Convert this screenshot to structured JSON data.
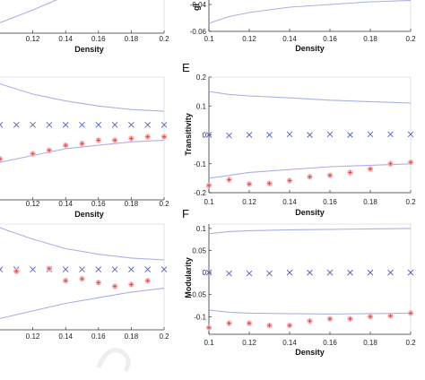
{
  "chart_data": [
    {
      "id": "top-left",
      "type": "line",
      "xlabel": "Density",
      "ylabel": "",
      "xticks": [
        "0.12",
        "0.14",
        "0.16",
        "0.18",
        "0.2"
      ],
      "yticks": [],
      "panel_label": "",
      "xlim": [
        0.1,
        0.2
      ],
      "ylim": [
        0,
        1
      ],
      "series": [
        {
          "kind": "band",
          "x": [
            0.1,
            0.12,
            0.135,
            0.14
          ],
          "y": [
            0.25,
            0.55,
            0.8,
            1.0
          ]
        }
      ],
      "crosses": [],
      "stars": []
    },
    {
      "id": "top-right",
      "type": "line",
      "xlabel": "Density",
      "ylabel": "gl",
      "xticks": [
        "0.1",
        "0.12",
        "0.14",
        "0.16",
        "0.18",
        "0.2"
      ],
      "yticks": [
        "-0.04",
        "-0.06"
      ],
      "panel_label": "",
      "xlim": [
        0.1,
        0.2
      ],
      "ylim": [
        -0.06,
        -0.03
      ],
      "series": [
        {
          "kind": "band",
          "x": [
            0.1,
            0.11,
            0.12,
            0.14,
            0.16,
            0.18,
            0.2
          ],
          "y": [
            -0.054,
            -0.049,
            -0.046,
            -0.042,
            -0.04,
            -0.038,
            -0.037
          ]
        }
      ],
      "crosses": [],
      "stars": []
    },
    {
      "id": "mid-left",
      "type": "scatter",
      "xlabel": "Density",
      "ylabel": "",
      "xticks": [
        "0.12",
        "0.14",
        "0.16",
        "0.18",
        "0.2"
      ],
      "yticks": [],
      "panel_label": "",
      "xlim": [
        0.1,
        0.2
      ],
      "ylim": [
        -0.22,
        0.14
      ],
      "series": [
        {
          "kind": "band",
          "x": [
            0.1,
            0.12,
            0.14,
            0.16,
            0.18,
            0.2
          ],
          "y": [
            0.12,
            0.09,
            0.07,
            0.055,
            0.045,
            0.04
          ]
        },
        {
          "kind": "band",
          "x": [
            0.1,
            0.12,
            0.14,
            0.16,
            0.18,
            0.2
          ],
          "y": [
            -0.11,
            -0.09,
            -0.07,
            -0.06,
            -0.05,
            -0.045
          ]
        }
      ],
      "crosses": {
        "x": [
          0.1,
          0.11,
          0.12,
          0.13,
          0.14,
          0.15,
          0.16,
          0.17,
          0.18,
          0.19,
          0.2
        ],
        "y": [
          0,
          0,
          0,
          0,
          0,
          0,
          0,
          0,
          0,
          0,
          0
        ]
      },
      "stars": {
        "x": [
          0.1,
          0.12,
          0.13,
          0.14,
          0.15,
          0.16,
          0.17,
          0.18,
          0.19,
          0.2
        ],
        "y": [
          -0.1,
          -0.085,
          -0.075,
          -0.06,
          -0.055,
          -0.045,
          -0.045,
          -0.04,
          -0.035,
          -0.035
        ]
      }
    },
    {
      "id": "panel-E",
      "type": "scatter",
      "xlabel": "Density",
      "ylabel": "Transitivity",
      "xticks": [
        "0.1",
        "0.12",
        "0.14",
        "0.16",
        "0.18",
        "0.2"
      ],
      "yticks": [
        "0.2",
        "0.1",
        "0",
        "-0.1",
        "-0.2"
      ],
      "panel_label": "E",
      "xlim": [
        0.1,
        0.2
      ],
      "ylim": [
        -0.2,
        0.2
      ],
      "series": [
        {
          "kind": "band",
          "x": [
            0.1,
            0.11,
            0.12,
            0.14,
            0.16,
            0.18,
            0.2
          ],
          "y": [
            0.15,
            0.14,
            0.135,
            0.128,
            0.12,
            0.115,
            0.11
          ]
        },
        {
          "kind": "band",
          "x": [
            0.1,
            0.11,
            0.12,
            0.14,
            0.16,
            0.18,
            0.2
          ],
          "y": [
            -0.15,
            -0.14,
            -0.13,
            -0.12,
            -0.11,
            -0.105,
            -0.1
          ]
        }
      ],
      "crosses": {
        "x": [
          0.1,
          0.11,
          0.12,
          0.13,
          0.14,
          0.15,
          0.16,
          0.17,
          0.18,
          0.19,
          0.2
        ],
        "y": [
          0,
          -0.002,
          0,
          0,
          0.002,
          0,
          0.002,
          0,
          0.002,
          0.002,
          0.002
        ]
      },
      "stars": {
        "x": [
          0.1,
          0.11,
          0.12,
          0.13,
          0.14,
          0.15,
          0.16,
          0.17,
          0.18,
          0.19,
          0.2
        ],
        "y": [
          -0.175,
          -0.155,
          -0.17,
          -0.168,
          -0.158,
          -0.145,
          -0.14,
          -0.13,
          -0.118,
          -0.1,
          -0.095
        ]
      }
    },
    {
      "id": "bottom-left",
      "type": "scatter",
      "xlabel": "",
      "ylabel": "",
      "xticks": [
        "0.12",
        "0.14",
        "0.16",
        "0.18",
        "0.2"
      ],
      "yticks": [],
      "panel_label": "",
      "xlim": [
        0.1,
        0.2
      ],
      "ylim": [
        -0.16,
        0.12
      ],
      "series": [
        {
          "kind": "band",
          "x": [
            0.1,
            0.12,
            0.14,
            0.16,
            0.18,
            0.2
          ],
          "y": [
            0.11,
            0.08,
            0.055,
            0.04,
            0.03,
            0.025
          ]
        },
        {
          "kind": "band",
          "x": [
            0.1,
            0.12,
            0.14,
            0.16,
            0.18,
            0.2
          ],
          "y": [
            -0.13,
            -0.11,
            -0.09,
            -0.075,
            -0.06,
            -0.05
          ]
        }
      ],
      "crosses": {
        "x": [
          0.1,
          0.11,
          0.12,
          0.13,
          0.14,
          0.15,
          0.16,
          0.17,
          0.18,
          0.19,
          0.2
        ],
        "y": [
          0,
          0,
          0,
          0,
          0,
          0,
          0,
          0,
          0,
          0,
          0
        ]
      },
      "stars": {
        "x": [
          0.11,
          0.13,
          0.14,
          0.15,
          0.16,
          0.17,
          0.18,
          0.19
        ],
        "y": [
          -0.005,
          0.002,
          -0.03,
          -0.025,
          -0.035,
          -0.045,
          -0.04,
          -0.03
        ]
      }
    },
    {
      "id": "panel-F",
      "type": "scatter",
      "xlabel": "Density",
      "ylabel": "Modularity",
      "xticks": [
        "0.1",
        "0.12",
        "0.14",
        "0.16",
        "0.18",
        "0.2"
      ],
      "yticks": [
        "0.1",
        "0.05",
        "0",
        "-0.05",
        "-0.1"
      ],
      "panel_label": "F",
      "xlim": [
        0.1,
        0.2
      ],
      "ylim": [
        -0.14,
        0.11
      ],
      "series": [
        {
          "kind": "band",
          "x": [
            0.1,
            0.11,
            0.12,
            0.14,
            0.16,
            0.18,
            0.2
          ],
          "y": [
            0.088,
            0.093,
            0.095,
            0.097,
            0.098,
            0.099,
            0.1
          ]
        },
        {
          "kind": "band",
          "x": [
            0.1,
            0.11,
            0.12,
            0.14,
            0.16,
            0.18,
            0.2
          ],
          "y": [
            -0.085,
            -0.09,
            -0.092,
            -0.093,
            -0.094,
            -0.093,
            -0.092
          ]
        }
      ],
      "crosses": {
        "x": [
          0.1,
          0.11,
          0.12,
          0.13,
          0.14,
          0.15,
          0.16,
          0.17,
          0.18,
          0.19,
          0.2
        ],
        "y": [
          0,
          -0.002,
          -0.002,
          -0.002,
          0,
          0,
          0,
          0,
          0,
          0,
          0
        ]
      },
      "stars": {
        "x": [
          0.1,
          0.11,
          0.12,
          0.13,
          0.14,
          0.15,
          0.16,
          0.17,
          0.18,
          0.19,
          0.2
        ],
        "y": [
          -0.125,
          -0.115,
          -0.115,
          -0.12,
          -0.12,
          -0.11,
          -0.105,
          -0.105,
          -0.1,
          -0.098,
          -0.092
        ]
      }
    }
  ],
  "colors": {
    "band": "#aab0e6",
    "cross": "#5560c8",
    "star": "#e23b3b",
    "starfill": "#f7b7b7"
  }
}
